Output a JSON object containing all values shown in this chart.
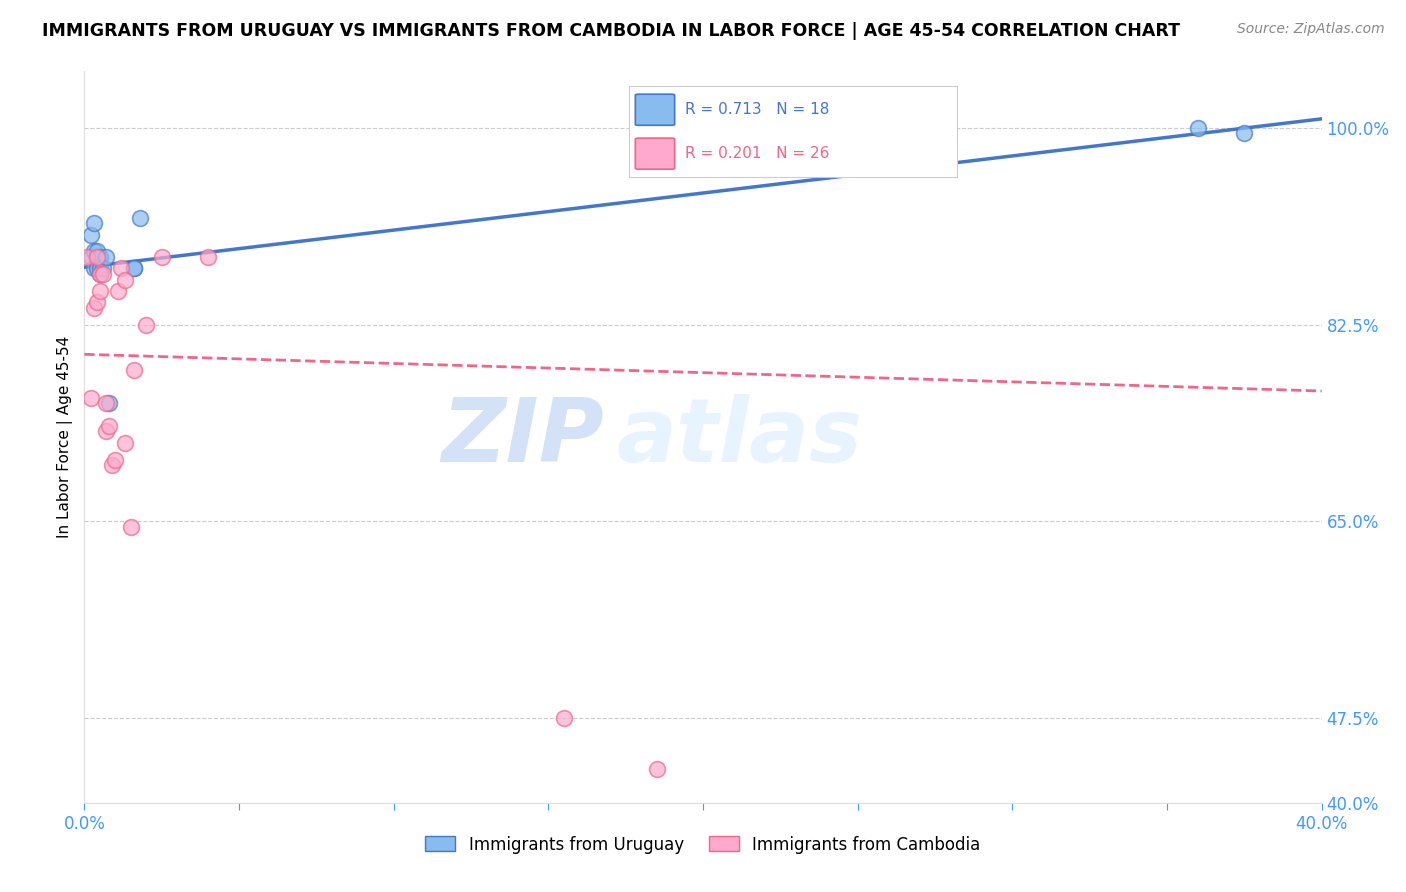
{
  "title": "IMMIGRANTS FROM URUGUAY VS IMMIGRANTS FROM CAMBODIA IN LABOR FORCE | AGE 45-54 CORRELATION CHART",
  "source": "Source: ZipAtlas.com",
  "ylabel": "In Labor Force | Age 45-54",
  "xlim": [
    0.0,
    0.4
  ],
  "ylim": [
    0.4,
    1.05
  ],
  "color_uruguay": "#88BBEE",
  "color_cambodia": "#FFAACC",
  "color_line_uruguay": "#4477CC",
  "color_line_cambodia": "#EE6688",
  "watermark_zip": "ZIP",
  "watermark_atlas": "atlas",
  "legend_r1": "R = 0.713",
  "legend_n1": "N = 18",
  "legend_r2": "R = 0.201",
  "legend_n2": "N = 26",
  "ytick_positions": [
    1.0,
    0.825,
    0.65,
    0.475,
    0.4
  ],
  "ytick_labels": [
    "100.0%",
    "82.5%",
    "65.0%",
    "47.5%",
    "40.0%"
  ],
  "xtick_positions": [
    0.0,
    0.05,
    0.1,
    0.15,
    0.2,
    0.25,
    0.3,
    0.35,
    0.4
  ],
  "xtick_labels": [
    "0.0%",
    "",
    "",
    "",
    "",
    "",
    "",
    "",
    "40.0%"
  ],
  "uruguay_x": [
    0.002,
    0.002,
    0.003,
    0.003,
    0.003,
    0.004,
    0.004,
    0.005,
    0.005,
    0.005,
    0.006,
    0.007,
    0.008,
    0.016,
    0.016,
    0.018,
    0.36,
    0.375
  ],
  "uruguay_y": [
    0.905,
    0.885,
    0.915,
    0.89,
    0.875,
    0.875,
    0.89,
    0.875,
    0.885,
    0.87,
    0.875,
    0.885,
    0.755,
    0.875,
    0.875,
    0.92,
    1.0,
    0.995
  ],
  "cambodia_x": [
    0.001,
    0.002,
    0.003,
    0.004,
    0.004,
    0.005,
    0.005,
    0.006,
    0.007,
    0.007,
    0.008,
    0.009,
    0.01,
    0.011,
    0.012,
    0.013,
    0.013,
    0.015,
    0.016,
    0.02,
    0.025,
    0.04,
    0.155,
    0.185,
    0.23,
    0.27
  ],
  "cambodia_y": [
    0.885,
    0.76,
    0.84,
    0.885,
    0.845,
    0.87,
    0.855,
    0.87,
    0.755,
    0.73,
    0.735,
    0.7,
    0.705,
    0.855,
    0.875,
    0.865,
    0.72,
    0.645,
    0.785,
    0.825,
    0.885,
    0.885,
    0.475,
    0.43,
    1.0,
    0.995
  ]
}
